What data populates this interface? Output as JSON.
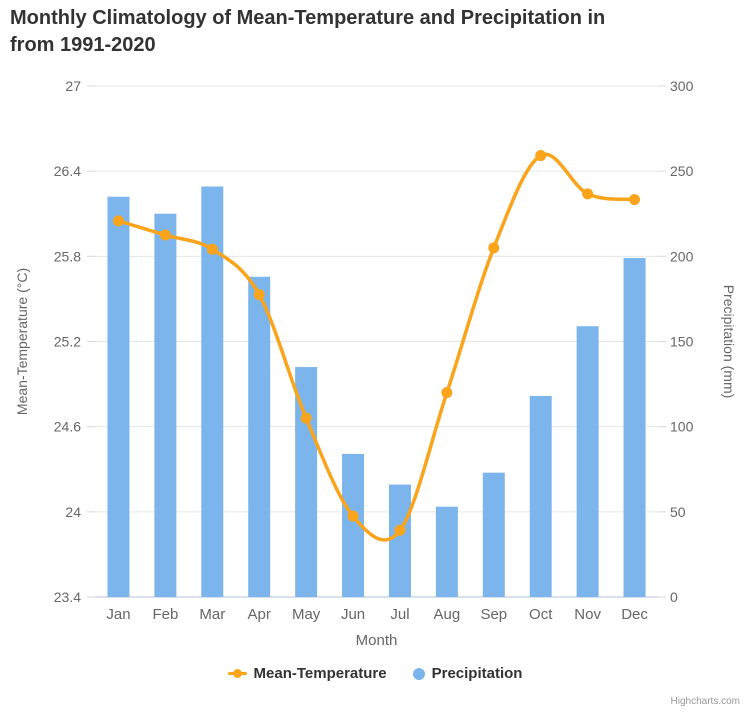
{
  "title": {
    "line1": "Monthly Climatology of Mean-Temperature and Precipitation in",
    "line2": "from 1991-2020"
  },
  "legend": {
    "items": [
      {
        "label": "Mean-Temperature",
        "marker": "line-dot-icon"
      },
      {
        "label": "Precipitation",
        "marker": "circle-icon"
      }
    ]
  },
  "credits": "Highcharts.com",
  "colors": {
    "temperature": "#faa41c",
    "precipitation": "#7cb5ec",
    "title_text": "#333333",
    "axis_text": "#666666",
    "gridline": "#e6e6e6",
    "axis_line": "#ccd6eb",
    "tick_mark": "#d8d8d8",
    "legend_text": "#333333",
    "credits_text": "#999999"
  },
  "chart_data": {
    "type": "combo",
    "categories": [
      "Jan",
      "Feb",
      "Mar",
      "Apr",
      "May",
      "Jun",
      "Jul",
      "Aug",
      "Sep",
      "Oct",
      "Nov",
      "Dec"
    ],
    "series": [
      {
        "name": "Mean-Temperature",
        "type": "spline",
        "axis": "left",
        "color": "#faa41c",
        "values": [
          26.05,
          25.95,
          25.85,
          25.53,
          24.66,
          23.97,
          23.87,
          24.84,
          25.86,
          26.51,
          26.24,
          26.2
        ]
      },
      {
        "name": "Precipitation",
        "type": "bar",
        "axis": "right",
        "color": "#7cb5ec",
        "values": [
          235,
          225,
          241,
          188,
          135,
          84,
          66,
          53,
          73,
          118,
          159,
          199
        ]
      }
    ],
    "xlabel": "Month",
    "y_left": {
      "label": "Mean-Temperature (°C)",
      "min": 23.4,
      "max": 27,
      "ticks": [
        23.4,
        24,
        24.6,
        25.2,
        25.8,
        26.4,
        27
      ]
    },
    "y_right": {
      "label": "Precipitation (mm)",
      "min": 0,
      "max": 300,
      "ticks": [
        0,
        50,
        100,
        150,
        200,
        250,
        300
      ]
    },
    "grid": true,
    "legend_position": "bottom"
  }
}
